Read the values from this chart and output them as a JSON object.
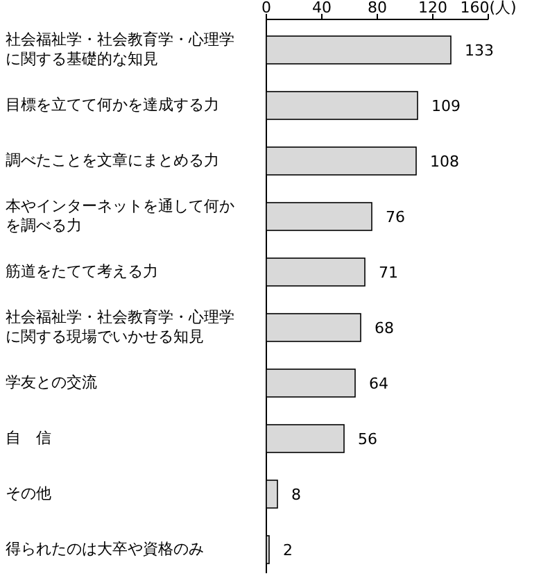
{
  "chart_data": {
    "type": "bar",
    "orientation": "horizontal",
    "categories": [
      "社会福祉学・社会教育学・心理学に関する基礎的な知見",
      "目標を立てて何かを達成する力",
      "調べたことを文章にまとめる力",
      "本やインターネットを通して何かを調べる力",
      "筋道をたてて考える力",
      "社会福祉学・社会教育学・心理学に関する現場でいかせる知見",
      "学友との交流",
      "自　信",
      "その他",
      "得られたのは大卒や資格のみ"
    ],
    "values": [
      133,
      109,
      108,
      76,
      71,
      68,
      64,
      56,
      8,
      2
    ],
    "color": "#d9d9d9",
    "data_labels": true,
    "xlim": [
      0,
      160
    ],
    "xticks": [
      0,
      40,
      80,
      120,
      {
        "value": 160,
        "label": "160(人)"
      }
    ],
    "grid": false
  }
}
